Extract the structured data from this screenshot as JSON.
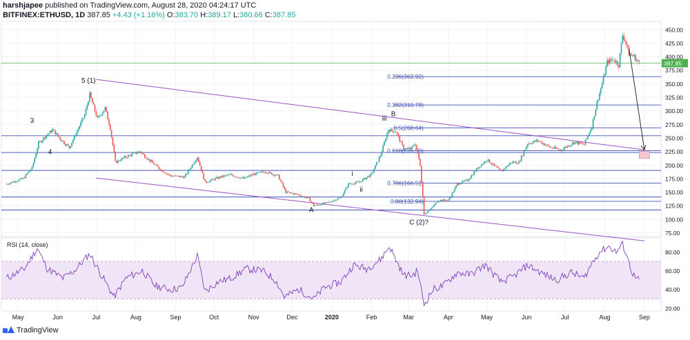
{
  "header": {
    "line1": {
      "author": "harshjapee",
      "text": " published on TradingView.com, August 28, 2020 04:24:17 UTC"
    },
    "line2": {
      "symbol": "BITFINEX:ETHUSD, 1D",
      "last": "387.85",
      "change": "+4.43 (+1.16%)",
      "o_label": "O:",
      "o": "383.70",
      "h_label": "H:",
      "h": "389.17",
      "l_label": "L:",
      "l": "380.66",
      "c_label": "C:",
      "c": "387.85"
    }
  },
  "footer": {
    "brand": "TradingView"
  },
  "colors": {
    "up": "#26a69a",
    "down": "#ef5350",
    "fib": "#3f51b5",
    "channel": "#9c4fbf",
    "rsi": "#7e3fb8",
    "rsi_band": "#f0e4f7",
    "current_price": "#4caf50",
    "box": "#f4c7cf"
  },
  "chart_data": {
    "type": "candlestick",
    "symbol": "BITFINEX:ETHUSD",
    "interval": "1D",
    "price_axis": {
      "ticks": [
        "450.00",
        "425.00",
        "400.00",
        "375.00",
        "350.00",
        "325.00",
        "300.00",
        "275.00",
        "250.00",
        "225.00",
        "200.00",
        "175.00",
        "150.00",
        "125.00",
        "100.00",
        "75.00"
      ],
      "range": [
        68,
        465
      ]
    },
    "current_price_label": "387.85",
    "x_ticks": [
      "May",
      "Jun",
      "Jul",
      "Aug",
      "Sep",
      "Oct",
      "Nov",
      "Dec",
      "2020",
      "Feb",
      "Mar",
      "Apr",
      "May",
      "Jun",
      "Jul",
      "Aug",
      "Sep"
    ],
    "x_tick_dates": [
      "2019-05-01",
      "2019-06-01",
      "2019-07-01",
      "2019-08-01",
      "2019-09-01",
      "2019-10-01",
      "2019-11-01",
      "2019-12-01",
      "2020-01-01",
      "2020-02-01",
      "2020-03-01",
      "2020-04-01",
      "2020-05-01",
      "2020-06-01",
      "2020-07-01",
      "2020-08-01",
      "2020-09-01"
    ],
    "close_path": [
      [
        "2019-04-22",
        165
      ],
      [
        "2019-05-05",
        175
      ],
      [
        "2019-05-12",
        195
      ],
      [
        "2019-05-17",
        240
      ],
      [
        "2019-05-22",
        252
      ],
      [
        "2019-05-28",
        265
      ],
      [
        "2019-06-03",
        248
      ],
      [
        "2019-06-10",
        232
      ],
      [
        "2019-06-16",
        262
      ],
      [
        "2019-06-22",
        292
      ],
      [
        "2019-06-26",
        330
      ],
      [
        "2019-07-02",
        285
      ],
      [
        "2019-07-08",
        305
      ],
      [
        "2019-07-12",
        268
      ],
      [
        "2019-07-16",
        205
      ],
      [
        "2019-07-24",
        215
      ],
      [
        "2019-08-04",
        225
      ],
      [
        "2019-08-12",
        208
      ],
      [
        "2019-08-20",
        192
      ],
      [
        "2019-08-28",
        180
      ],
      [
        "2019-09-08",
        178
      ],
      [
        "2019-09-18",
        215
      ],
      [
        "2019-09-24",
        168
      ],
      [
        "2019-10-06",
        178
      ],
      [
        "2019-10-14",
        182
      ],
      [
        "2019-10-24",
        175
      ],
      [
        "2019-11-01",
        183
      ],
      [
        "2019-11-10",
        188
      ],
      [
        "2019-11-20",
        180
      ],
      [
        "2019-11-26",
        150
      ],
      [
        "2019-12-06",
        145
      ],
      [
        "2019-12-14",
        138
      ],
      [
        "2019-12-18",
        125
      ],
      [
        "2019-12-28",
        130
      ],
      [
        "2020-01-08",
        140
      ],
      [
        "2020-01-14",
        165
      ],
      [
        "2020-01-22",
        168
      ],
      [
        "2020-02-01",
        183
      ],
      [
        "2020-02-08",
        218
      ],
      [
        "2020-02-14",
        265
      ],
      [
        "2020-02-20",
        262
      ],
      [
        "2020-02-26",
        230
      ],
      [
        "2020-03-03",
        230
      ],
      [
        "2020-03-06",
        240
      ],
      [
        "2020-03-10",
        200
      ],
      [
        "2020-03-13",
        110
      ],
      [
        "2020-03-18",
        118
      ],
      [
        "2020-03-24",
        135
      ],
      [
        "2020-04-01",
        135
      ],
      [
        "2020-04-08",
        165
      ],
      [
        "2020-04-16",
        172
      ],
      [
        "2020-04-24",
        195
      ],
      [
        "2020-05-01",
        210
      ],
      [
        "2020-05-12",
        188
      ],
      [
        "2020-05-20",
        205
      ],
      [
        "2020-05-26",
        205
      ],
      [
        "2020-06-02",
        240
      ],
      [
        "2020-06-10",
        245
      ],
      [
        "2020-06-20",
        232
      ],
      [
        "2020-06-28",
        228
      ],
      [
        "2020-07-08",
        242
      ],
      [
        "2020-07-16",
        238
      ],
      [
        "2020-07-22",
        272
      ],
      [
        "2020-07-26",
        315
      ],
      [
        "2020-07-30",
        350
      ],
      [
        "2020-08-03",
        390
      ],
      [
        "2020-08-08",
        395
      ],
      [
        "2020-08-12",
        385
      ],
      [
        "2020-08-15",
        440
      ],
      [
        "2020-08-17",
        430
      ],
      [
        "2020-08-20",
        405
      ],
      [
        "2020-08-24",
        400
      ],
      [
        "2020-08-28",
        387.85
      ]
    ],
    "fib_levels": [
      {
        "label": "0.236(362.92)",
        "price": 362.92
      },
      {
        "label": "0.382(310.78)",
        "price": 310.78
      },
      {
        "label": "0.5(268.64)",
        "price": 268.64
      },
      {
        "label": "0.618(226.50)",
        "price": 226.5
      },
      {
        "label": "0.786(166.51)",
        "price": 166.51
      },
      {
        "label": "0.88(132.94)",
        "price": 132.94
      }
    ],
    "horizontal_lines": [
      254,
      223,
      190,
      141,
      117
    ],
    "channel": {
      "upper": [
        [
          "2019-07-01",
          358
        ],
        [
          "2020-09-01",
          228
        ]
      ],
      "lower": [
        [
          "2019-07-01",
          176
        ],
        [
          "2020-09-01",
          60
        ]
      ]
    },
    "projection_arrow": [
      [
        "2020-08-20",
        415
      ],
      [
        "2020-09-01",
        228
      ]
    ],
    "target_box": {
      "from": "2020-08-28",
      "to": "2020-09-05",
      "price_top": 225,
      "price_bottom": 212
    },
    "wave_labels": [
      {
        "text": "5 (1)",
        "date": "2019-06-25",
        "price": 352
      },
      {
        "text": "3",
        "date": "2019-05-12",
        "price": 278
      },
      {
        "text": "4",
        "date": "2019-05-26",
        "price": 220
      },
      {
        "text": "A",
        "date": "2019-12-16",
        "price": 113
      },
      {
        "text": "i",
        "date": "2020-01-17",
        "price": 180
      },
      {
        "text": "ii",
        "date": "2020-01-24",
        "price": 151
      },
      {
        "text": "iii",
        "date": "2020-02-11",
        "price": 282
      },
      {
        "text": "B",
        "date": "2020-02-18",
        "price": 290
      },
      {
        "text": "C (2)?",
        "date": "2020-03-09",
        "price": 90
      }
    ],
    "rsi": {
      "label": "RSI (14, close)",
      "ticks": [
        "80.00",
        "60.00",
        "40.00",
        "20.00"
      ],
      "range": [
        17,
        95
      ],
      "bands": [
        70,
        30
      ],
      "last": 51,
      "path": [
        [
          "2019-04-22",
          52
        ],
        [
          "2019-05-06",
          62
        ],
        [
          "2019-05-16",
          84
        ],
        [
          "2019-05-24",
          62
        ],
        [
          "2019-06-05",
          52
        ],
        [
          "2019-06-14",
          60
        ],
        [
          "2019-06-26",
          78
        ],
        [
          "2019-07-04",
          58
        ],
        [
          "2019-07-15",
          32
        ],
        [
          "2019-07-24",
          52
        ],
        [
          "2019-08-06",
          60
        ],
        [
          "2019-08-16",
          44
        ],
        [
          "2019-08-28",
          40
        ],
        [
          "2019-09-06",
          42
        ],
        [
          "2019-09-18",
          76
        ],
        [
          "2019-09-24",
          38
        ],
        [
          "2019-10-04",
          48
        ],
        [
          "2019-10-14",
          52
        ],
        [
          "2019-10-26",
          62
        ],
        [
          "2019-11-08",
          60
        ],
        [
          "2019-11-18",
          50
        ],
        [
          "2019-11-25",
          32
        ],
        [
          "2019-12-06",
          40
        ],
        [
          "2019-12-18",
          30
        ],
        [
          "2019-12-26",
          42
        ],
        [
          "2020-01-08",
          48
        ],
        [
          "2020-01-18",
          66
        ],
        [
          "2020-01-28",
          62
        ],
        [
          "2020-02-08",
          72
        ],
        [
          "2020-02-15",
          86
        ],
        [
          "2020-02-26",
          55
        ],
        [
          "2020-03-04",
          55
        ],
        [
          "2020-03-08",
          60
        ],
        [
          "2020-03-13",
          24
        ],
        [
          "2020-03-20",
          40
        ],
        [
          "2020-03-28",
          44
        ],
        [
          "2020-04-08",
          58
        ],
        [
          "2020-04-18",
          56
        ],
        [
          "2020-04-30",
          66
        ],
        [
          "2020-05-12",
          48
        ],
        [
          "2020-05-22",
          54
        ],
        [
          "2020-06-02",
          66
        ],
        [
          "2020-06-12",
          58
        ],
        [
          "2020-06-24",
          50
        ],
        [
          "2020-07-06",
          58
        ],
        [
          "2020-07-16",
          52
        ],
        [
          "2020-07-22",
          68
        ],
        [
          "2020-07-28",
          80
        ],
        [
          "2020-08-04",
          86
        ],
        [
          "2020-08-10",
          80
        ],
        [
          "2020-08-15",
          88
        ],
        [
          "2020-08-18",
          78
        ],
        [
          "2020-08-22",
          60
        ],
        [
          "2020-08-25",
          52
        ],
        [
          "2020-08-28",
          51
        ]
      ]
    }
  }
}
